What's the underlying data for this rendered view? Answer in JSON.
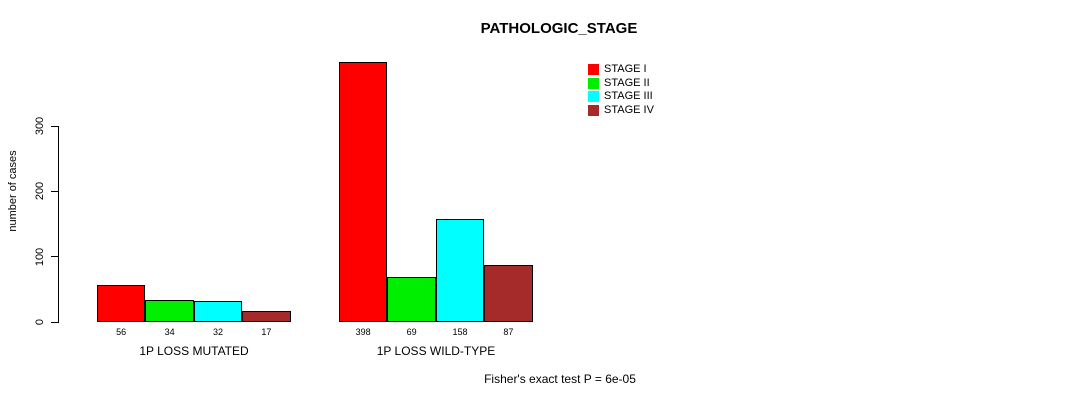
{
  "title": "PATHOLOGIC_STAGE",
  "chart_data": {
    "type": "bar",
    "title": "PATHOLOGIC_STAGE",
    "xlabel": "",
    "ylabel": "number of cases",
    "ylim": [
      0,
      300
    ],
    "yticks": [
      0,
      100,
      200,
      300
    ],
    "grid": false,
    "legend_position": "top-right",
    "groups": [
      "1P LOSS MUTATED",
      "1P LOSS WILD-TYPE"
    ],
    "series": [
      {
        "name": "STAGE I",
        "color": "#FF0000",
        "values": [
          56,
          398
        ]
      },
      {
        "name": "STAGE II",
        "color": "#00EE00",
        "values": [
          34,
          69
        ]
      },
      {
        "name": "STAGE III",
        "color": "#00FFFF",
        "values": [
          32,
          158
        ]
      },
      {
        "name": "STAGE IV",
        "color": "#A52A2A",
        "values": [
          17,
          87
        ]
      }
    ],
    "bar_value_labels": [
      [
        56,
        34,
        32,
        17
      ],
      [
        398,
        69,
        158,
        87
      ]
    ],
    "annotation": "Fisher's exact test P = 6e-05"
  }
}
